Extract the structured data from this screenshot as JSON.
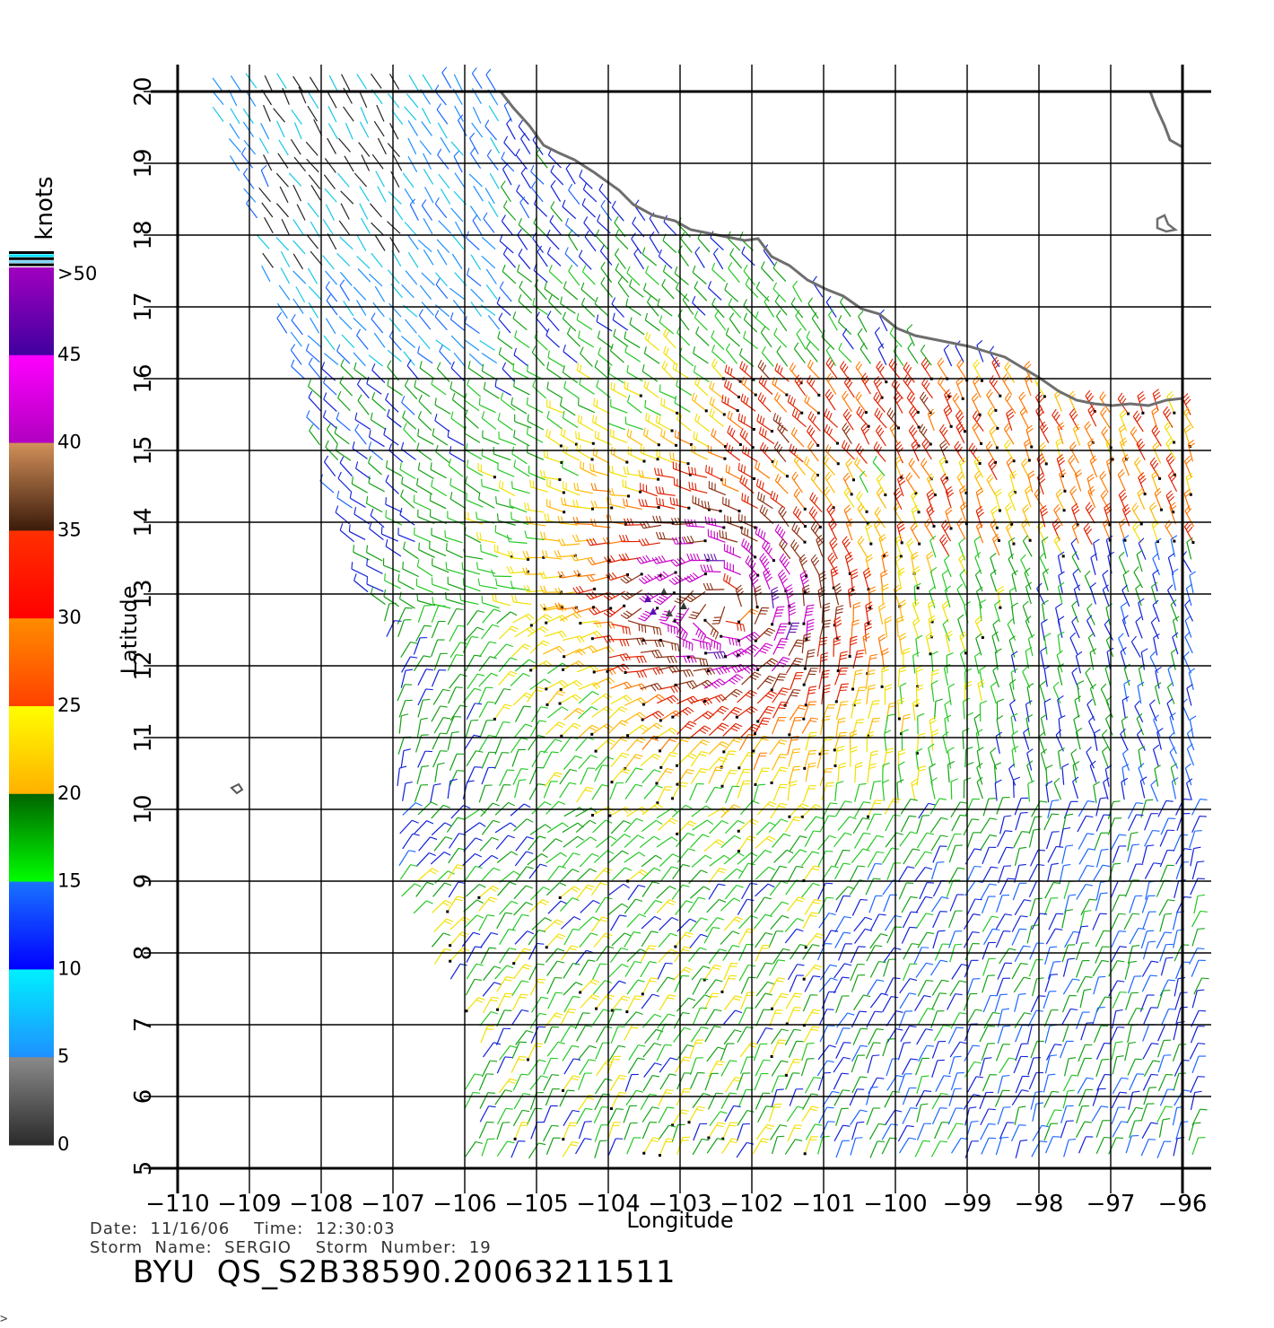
{
  "map": {
    "x_axis_label": "Longitude",
    "y_axis_label": "Latitude",
    "lon_ticks": [
      "−110",
      "−109",
      "−108",
      "−107",
      "−106",
      "−105",
      "−104",
      "−103",
      "−102",
      "−101",
      "−100",
      "−99",
      "−98",
      "−97",
      "−96"
    ],
    "lat_ticks": [
      "5",
      "6",
      "7",
      "8",
      "9",
      "10",
      "11",
      "12",
      "13",
      "14",
      "15",
      "16",
      "17",
      "18",
      "19",
      "20"
    ],
    "lon_range": [
      -110,
      -96
    ],
    "lat_range": [
      5,
      20
    ],
    "grid": true
  },
  "colorbar": {
    "title": "knots",
    "labels": [
      ">50",
      "45",
      "40",
      "35",
      "30",
      "25",
      "20",
      "15",
      "10",
      "5",
      "0"
    ],
    "colors": {
      "c0_5": [
        "#8a8a8a",
        "#2a2a2a"
      ],
      "c5_10": [
        "#00f0ff",
        "#1e90ff"
      ],
      "c10_15": [
        "#1a73ff",
        "#0000ff"
      ],
      "c15_20": [
        "#006400",
        "#00ff00"
      ],
      "c20_25": [
        "#ffff00",
        "#ffb000"
      ],
      "c25_30": [
        "#ff8c00",
        "#ff4000"
      ],
      "c30_35": [
        "#ff3000",
        "#ff0000"
      ],
      "c35_40": [
        "#d2905a",
        "#3a1a0a"
      ],
      "c40_45": [
        "#ff00ff",
        "#b000c0"
      ],
      "c45_50": [
        "#a000c0",
        "#4000a0"
      ]
    }
  },
  "storm": {
    "date_line": "Date:  11/16/06    Time:  12:30:03",
    "name_line": "Storm  Name:  SERGIO    Storm  Number:  19",
    "file_id": "BYU  QS_S2B38590.20063211511"
  },
  "corner_mark": ">",
  "chart_data": {
    "type": "wind-barb-map",
    "xlabel": "Longitude",
    "ylabel": "Latitude",
    "xlim": [
      -110,
      -96
    ],
    "ylim": [
      5,
      20
    ],
    "x_ticks": [
      -110,
      -109,
      -108,
      -107,
      -106,
      -105,
      -104,
      -103,
      -102,
      -101,
      -100,
      -99,
      -98,
      -97,
      -96
    ],
    "y_ticks": [
      5,
      6,
      7,
      8,
      9,
      10,
      11,
      12,
      13,
      14,
      15,
      16,
      17,
      18,
      19,
      20
    ],
    "storm_center": {
      "lon": -102.3,
      "lat": 12.8
    },
    "colorbar_units": "knots",
    "colorbar_range": [
      0,
      50
    ]
  }
}
